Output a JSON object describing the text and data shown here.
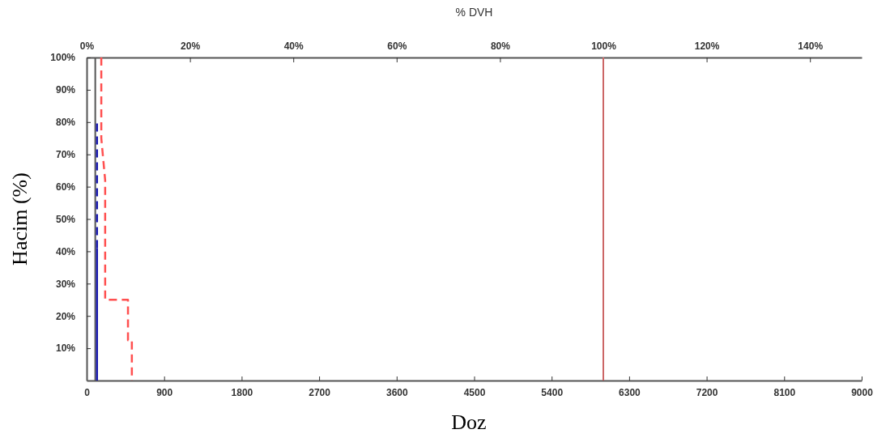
{
  "chart_data": {
    "type": "line",
    "x2label": "% DVH",
    "xlabel": "Doz",
    "ylabel": "Hacim (%)",
    "xlim": [
      0,
      9000
    ],
    "xticks": [
      0,
      900,
      1800,
      2700,
      3600,
      4500,
      5400,
      6300,
      7200,
      8100,
      9000
    ],
    "x2lim": [
      0,
      150
    ],
    "x2ticks": [
      {
        "value": 0,
        "label": "0%"
      },
      {
        "value": 20,
        "label": "20%"
      },
      {
        "value": 40,
        "label": "40%"
      },
      {
        "value": 60,
        "label": "60%"
      },
      {
        "value": 80,
        "label": "80%"
      },
      {
        "value": 100,
        "label": "100%"
      },
      {
        "value": 120,
        "label": "120%"
      },
      {
        "value": 140,
        "label": "140%"
      }
    ],
    "ylim": [
      0,
      100
    ],
    "yticks": [
      {
        "value": 10,
        "label": "10%"
      },
      {
        "value": 20,
        "label": "20%"
      },
      {
        "value": 30,
        "label": "30%"
      },
      {
        "value": 40,
        "label": "40%"
      },
      {
        "value": 50,
        "label": "50%"
      },
      {
        "value": 60,
        "label": "60%"
      },
      {
        "value": 70,
        "label": "70%"
      },
      {
        "value": 80,
        "label": "80%"
      },
      {
        "value": 90,
        "label": "90%"
      },
      {
        "value": 100,
        "label": "100%"
      }
    ],
    "series": [
      {
        "color": "#1a1ab0",
        "line_style": "solid",
        "x": [
          120,
          120
        ],
        "values": [
          0,
          41
        ]
      },
      {
        "color": "#1a1ab0",
        "line_style": "dashed",
        "x": [
          120,
          120
        ],
        "values": [
          41,
          80
        ]
      },
      {
        "color": "#ff5050",
        "line_style": "dashed",
        "x": [
          170,
          170,
          215,
          215,
          480,
          480,
          525,
          525
        ],
        "values": [
          100,
          75,
          62,
          25,
          25,
          12.5,
          12.5,
          0
        ]
      }
    ],
    "ref_lines": [
      {
        "axis": "x",
        "value": 100,
        "color": "#555555",
        "line_style": "solid"
      },
      {
        "axis": "x",
        "value": 6000,
        "color": "#cc6666",
        "line_style": "solid"
      }
    ],
    "grid": false,
    "marker": "none"
  }
}
